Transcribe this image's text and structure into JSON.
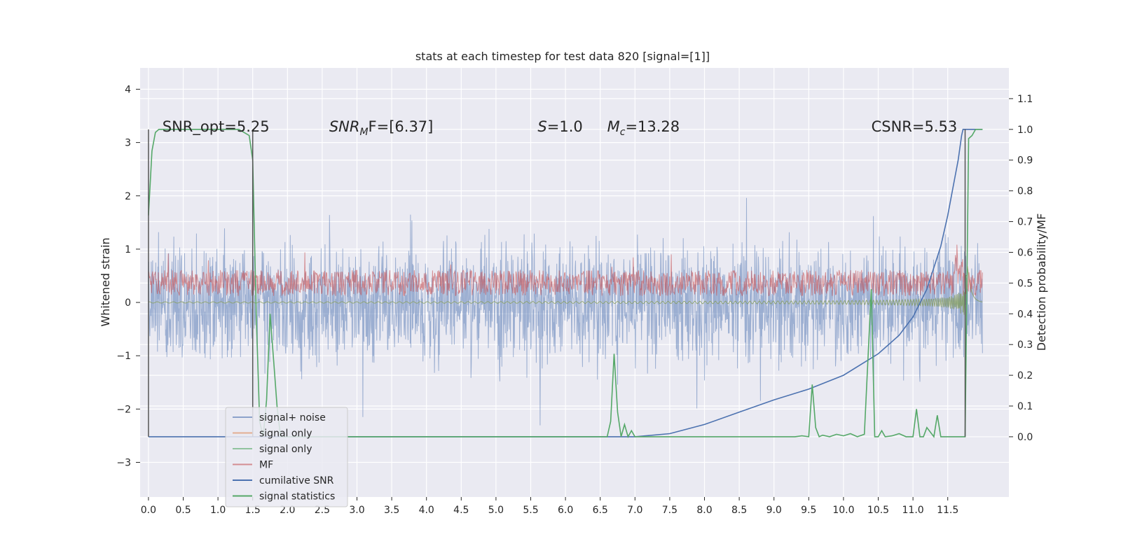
{
  "chart_data": {
    "type": "line",
    "title": "stats at each timestep for test data 820 [signal=[1]]",
    "xlabel": "",
    "ylabel": "Whitened strain",
    "y2label": "Detection probability/MF",
    "xlim": [
      -0.12,
      12.38
    ],
    "ylim": [
      -3.65,
      4.4
    ],
    "y2lim": [
      -0.196,
      1.2
    ],
    "x_ticks": [
      0.0,
      0.5,
      1.0,
      1.5,
      2.0,
      2.5,
      3.0,
      3.5,
      4.0,
      4.5,
      5.0,
      5.5,
      6.0,
      6.5,
      7.0,
      7.5,
      8.0,
      8.5,
      9.0,
      9.5,
      10.0,
      10.5,
      11.0,
      11.5
    ],
    "x_tick_labels": [
      "0.0",
      "0.5",
      "1.0",
      "1.5",
      "2.0",
      "2.5",
      "3.0",
      "3.5",
      "4.0",
      "4.5",
      "5.0",
      "5.5",
      "6.0",
      "6.5",
      "7.0",
      "7.5",
      "8.0",
      "8.5",
      "9.0",
      "9.5",
      "10.0",
      "10.5",
      "11.0",
      "11.5"
    ],
    "y_ticks": [
      -3,
      -2,
      -1,
      0,
      1,
      2,
      3,
      4
    ],
    "y_tick_labels": [
      "−3",
      "−2",
      "−1",
      "0",
      "1",
      "2",
      "3",
      "4"
    ],
    "y2_ticks": [
      0.0,
      0.1,
      0.2,
      0.3,
      0.4,
      0.5,
      0.6,
      0.7,
      0.8,
      0.9,
      1.0,
      1.1
    ],
    "y2_tick_labels": [
      "0.0",
      "0.1",
      "0.2",
      "0.3",
      "0.4",
      "0.5",
      "0.6",
      "0.7",
      "0.8",
      "0.9",
      "1.0",
      "1.1"
    ],
    "grid": true,
    "legend_position": "lower-left",
    "vlines": [
      0.0,
      1.5,
      11.75
    ],
    "annotations": [
      {
        "text": "SNR_opt=5.25",
        "x": 0.2,
        "y": 3.3
      },
      {
        "text_italic": "SNR",
        "sub": "M",
        "rest": "F=[6.37]",
        "x": 2.6,
        "y": 3.3
      },
      {
        "text_italic": "S",
        "rest": "=1.0",
        "x": 5.6,
        "y": 3.3
      },
      {
        "text_italic": "M",
        "sub": "c",
        "rest": "=13.28",
        "x": 6.6,
        "y": 3.3
      },
      {
        "text": "CSNR=5.53",
        "x": 10.4,
        "y": 3.3
      }
    ],
    "series": [
      {
        "name": "signal+ noise",
        "axis": "left",
        "color": "#4c72b0",
        "style": "noise",
        "std": 0.95,
        "x_range": [
          0.0,
          12.0
        ]
      },
      {
        "name": "signal only",
        "axis": "left",
        "color": "#dd8452",
        "style": "chirp",
        "x_range": [
          0.0,
          12.0
        ],
        "final_amp": 0.8
      },
      {
        "name": "signal only",
        "axis": "left",
        "color": "#55a868",
        "style": "chirp",
        "x_range": [
          0.0,
          12.0
        ],
        "final_amp": 0.75
      },
      {
        "name": "MF",
        "axis": "right",
        "color": "#c44e52",
        "style": "noise-band",
        "center": 0.5,
        "x_range": [
          0.0,
          12.0
        ]
      },
      {
        "name": "cumilative SNR",
        "axis": "right",
        "color": "#4c72b0",
        "x": [
          0.0,
          7.0,
          7.5,
          8.0,
          8.5,
          9.0,
          9.5,
          10.0,
          10.5,
          10.8,
          11.0,
          11.2,
          11.4,
          11.5,
          11.6,
          11.65,
          11.7,
          11.72,
          12.0
        ],
        "values": [
          0.0,
          0.0,
          0.01,
          0.04,
          0.08,
          0.12,
          0.155,
          0.2,
          0.27,
          0.33,
          0.39,
          0.48,
          0.62,
          0.72,
          0.84,
          0.9,
          0.98,
          1.0,
          1.0
        ]
      },
      {
        "name": "signal statistics",
        "axis": "right",
        "color": "#55a868",
        "x": [
          0.0,
          0.05,
          0.1,
          0.15,
          0.2,
          1.3,
          1.45,
          1.5,
          1.55,
          1.6,
          1.65,
          1.7,
          1.75,
          1.8,
          1.85,
          1.9,
          2.0,
          2.5,
          6.6,
          6.65,
          6.7,
          6.75,
          6.8,
          6.85,
          6.9,
          6.95,
          7.0,
          9.3,
          9.4,
          9.5,
          9.55,
          9.6,
          9.65,
          9.7,
          9.8,
          9.9,
          10.0,
          10.1,
          10.2,
          10.3,
          10.4,
          10.45,
          10.5,
          10.55,
          10.6,
          10.7,
          10.8,
          10.9,
          11.0,
          11.05,
          11.1,
          11.15,
          11.2,
          11.3,
          11.35,
          11.4,
          11.6,
          11.7,
          11.75,
          11.8,
          11.85,
          11.9,
          12.0
        ],
        "values": [
          0.72,
          0.93,
          0.99,
          1.0,
          1.0,
          1.0,
          0.98,
          0.9,
          0.4,
          0.05,
          0.0,
          0.12,
          0.4,
          0.25,
          0.1,
          0.0,
          0.0,
          0.0,
          0.0,
          0.05,
          0.27,
          0.08,
          0.0,
          0.04,
          0.0,
          0.02,
          0.0,
          0.0,
          0.003,
          0.0,
          0.17,
          0.03,
          0.0,
          0.005,
          0.0,
          0.008,
          0.003,
          0.01,
          0.0,
          0.008,
          0.48,
          0.0,
          0.0,
          0.02,
          0.0,
          0.003,
          0.01,
          0.0,
          0.0,
          0.09,
          0.0,
          0.0,
          0.03,
          0.0,
          0.07,
          0.0,
          0.0,
          0.0,
          0.0,
          0.97,
          0.98,
          1.0,
          1.0
        ]
      }
    ]
  }
}
